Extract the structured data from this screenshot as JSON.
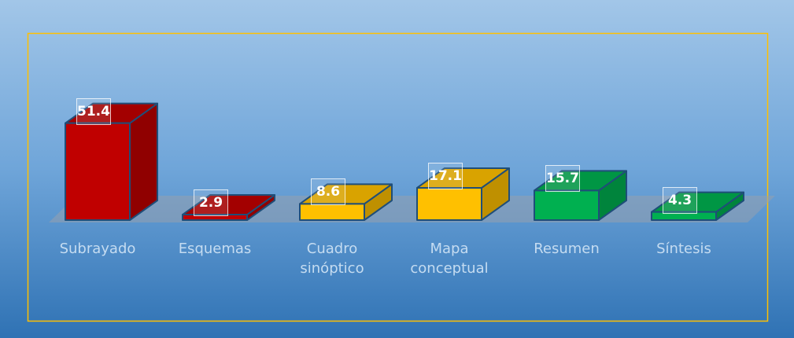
{
  "chart_data": {
    "type": "bar3d",
    "categories": [
      "Subrayado",
      "Esquemas",
      "Cuadro sinóptico",
      "Mapa conceptual",
      "Resumen",
      "Síntesis"
    ],
    "values": [
      51.4,
      2.9,
      8.6,
      17.1,
      15.7,
      4.3
    ],
    "colors": [
      "#c00000",
      "#c00000",
      "#ffc000",
      "#ffc000",
      "#00b050",
      "#00b050"
    ]
  }
}
